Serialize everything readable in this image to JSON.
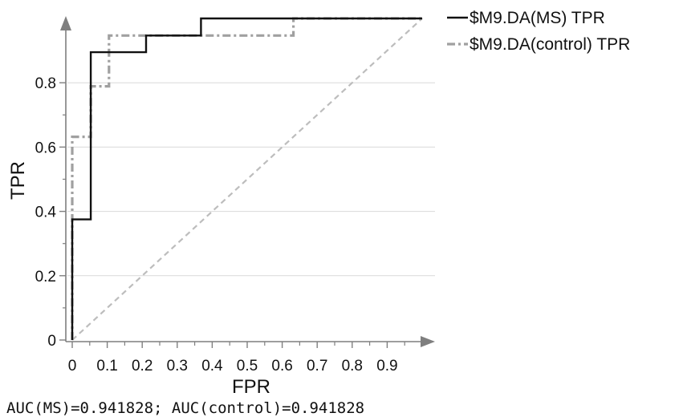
{
  "chart_data": {
    "type": "line",
    "title": "",
    "xlabel": "FPR",
    "ylabel": "TPR",
    "xlim": [
      0,
      1
    ],
    "ylim": [
      0,
      1
    ],
    "grid": "horizontal",
    "legend_position": "top-right, outside",
    "x_ticks": [
      "0",
      "0.1",
      "0.2",
      "0.3",
      "0.4",
      "0.5",
      "0.6",
      "0.7",
      "0.8",
      "0.9"
    ],
    "y_ticks": [
      "0",
      "0.2",
      "0.4",
      "0.6",
      "0.8"
    ],
    "series": [
      {
        "name": "$M9.DA(MS) TPR",
        "color": "#111111",
        "style": "solid",
        "x": [
          0,
          0,
          0.053,
          0.053,
          0.211,
          0.211,
          0.368,
          0.368,
          1.0
        ],
        "y": [
          0,
          0.375,
          0.375,
          0.895,
          0.895,
          0.947,
          0.947,
          1.0,
          1.0
        ]
      },
      {
        "name": "$M9.DA(control) TPR",
        "color": "#a0a0a0",
        "style": "dash-dot",
        "x": [
          0,
          0,
          0.053,
          0.053,
          0.105,
          0.105,
          0.632,
          0.632,
          1.0
        ],
        "y": [
          0,
          0.632,
          0.632,
          0.789,
          0.789,
          0.947,
          0.947,
          1.0,
          1.0
        ]
      },
      {
        "name": "",
        "color": "#bdbdbd",
        "style": "dashed",
        "x": [
          0,
          1
        ],
        "y": [
          0,
          1
        ]
      }
    ],
    "annotation": "AUC(MS)=0.941828; AUC(control)=0.941828"
  }
}
